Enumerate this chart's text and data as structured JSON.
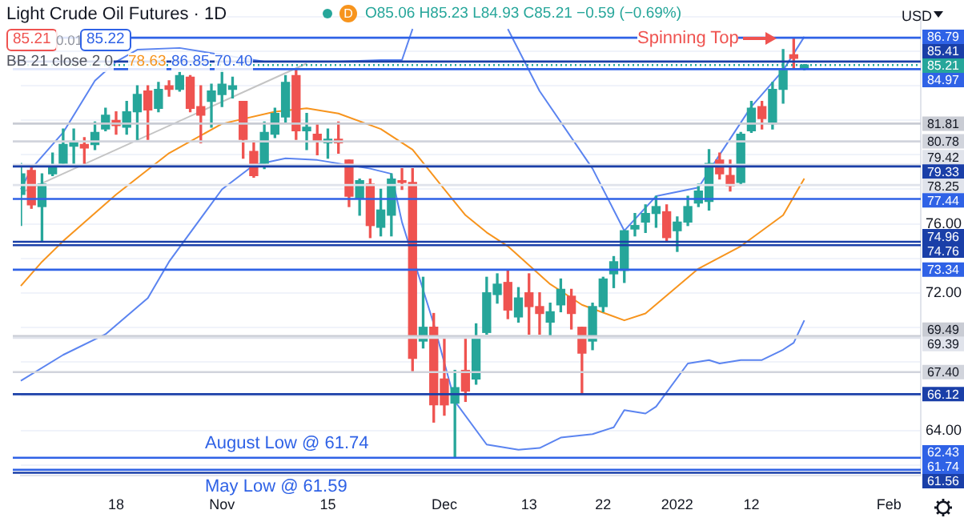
{
  "chart_data": {
    "type": "candlestick",
    "title": "Light Crude Oil Futures · 1D",
    "categories": [
      null,
      null,
      null,
      null,
      null,
      null,
      null,
      null,
      null,
      "18",
      null,
      null,
      null,
      null,
      null,
      null,
      null,
      null,
      null,
      "Nov",
      null,
      null,
      null,
      null,
      null,
      null,
      null,
      null,
      null,
      "15",
      null,
      null,
      null,
      null,
      null,
      null,
      null,
      null,
      null,
      null,
      "Dec",
      null,
      null,
      null,
      null,
      null,
      null,
      null,
      "13",
      null,
      null,
      null,
      null,
      null,
      null,
      "22",
      null,
      null,
      null,
      null,
      null,
      null,
      "2022",
      null,
      null,
      null,
      null,
      null,
      null,
      "12",
      null,
      null,
      null,
      null,
      null,
      null,
      null,
      null,
      null,
      null,
      null,
      null,
      "Feb",
      null,
      null,
      null
    ],
    "ohlc": [
      [
        77.7,
        79.5,
        75.9,
        78.9
      ],
      [
        79.1,
        79.4,
        76.9,
        77.1
      ],
      [
        77.0,
        78.9,
        75.0,
        78.3
      ],
      [
        78.9,
        80.1,
        78.8,
        79.4
      ],
      [
        79.5,
        81.5,
        79.4,
        80.6
      ],
      [
        80.5,
        81.5,
        79.5,
        80.7
      ],
      [
        80.6,
        81.0,
        79.4,
        80.4
      ],
      [
        80.6,
        81.9,
        80.3,
        81.3
      ],
      [
        81.5,
        82.7,
        81.4,
        82.3
      ],
      [
        82.0,
        82.5,
        81.2,
        81.7
      ],
      [
        81.6,
        83.1,
        81.2,
        82.5
      ],
      [
        82.5,
        84.0,
        80.9,
        83.5
      ],
      [
        83.7,
        84.0,
        80.9,
        82.6
      ],
      [
        82.7,
        84.2,
        82.5,
        83.8
      ],
      [
        84.0,
        84.3,
        83.4,
        83.8
      ],
      [
        83.8,
        84.8,
        83.7,
        84.6
      ],
      [
        84.5,
        84.6,
        82.5,
        82.7
      ],
      [
        82.8,
        84.0,
        80.7,
        82.3
      ],
      [
        83.1,
        84.1,
        81.6,
        83.7
      ],
      [
        83.5,
        84.9,
        82.8,
        84.1
      ],
      [
        83.8,
        84.5,
        83.3,
        84.0
      ],
      [
        83.1,
        83.1,
        79.8,
        80.9
      ],
      [
        80.2,
        80.8,
        78.7,
        78.8
      ],
      [
        79.5,
        81.9,
        79.2,
        81.3
      ],
      [
        81.2,
        82.7,
        81.0,
        82.4
      ],
      [
        82.2,
        84.6,
        81.9,
        84.2
      ],
      [
        84.6,
        85.0,
        80.9,
        81.4
      ],
      [
        81.4,
        82.4,
        80.3,
        81.6
      ],
      [
        81.2,
        81.8,
        80.0,
        80.8
      ],
      [
        80.7,
        81.5,
        79.8,
        80.9
      ],
      [
        80.9,
        81.9,
        80.1,
        80.7
      ],
      [
        79.7,
        79.7,
        77.0,
        77.6
      ],
      [
        77.5,
        78.6,
        76.5,
        78.5
      ],
      [
        78.3,
        78.6,
        75.2,
        75.9
      ],
      [
        75.8,
        78.0,
        75.3,
        76.8
      ],
      [
        76.5,
        78.9,
        75.3,
        78.6
      ],
      [
        78.5,
        79.2,
        78.0,
        78.4
      ],
      [
        78.4,
        79.2,
        67.4,
        68.2
      ],
      [
        69.2,
        72.9,
        68.8,
        70.0
      ],
      [
        70.0,
        70.8,
        64.5,
        65.5
      ],
      [
        67.0,
        69.4,
        64.9,
        65.5
      ],
      [
        65.6,
        67.5,
        62.43,
        66.5
      ],
      [
        67.5,
        69.4,
        65.7,
        66.3
      ],
      [
        67.0,
        70.2,
        66.7,
        69.4
      ],
      [
        69.7,
        72.9,
        69.6,
        72.0
      ],
      [
        71.9,
        73.1,
        71.4,
        72.5
      ],
      [
        72.6,
        73.34,
        70.5,
        71.0
      ],
      [
        70.6,
        72.3,
        70.3,
        71.7
      ],
      [
        72.0,
        73.1,
        69.6,
        71.2
      ],
      [
        71.2,
        72.0,
        69.6,
        70.8
      ],
      [
        70.3,
        71.4,
        69.4,
        70.9
      ],
      [
        71.3,
        72.8,
        70.9,
        72.2
      ],
      [
        71.8,
        72.2,
        69.9,
        70.8
      ],
      [
        70.0,
        70.0,
        66.12,
        68.5
      ],
      [
        69.2,
        71.4,
        68.7,
        71.2
      ],
      [
        71.2,
        72.9,
        70.9,
        72.8
      ],
      [
        73.1,
        74.1,
        72.3,
        73.8
      ],
      [
        73.3,
        75.6,
        72.6,
        75.6
      ],
      [
        75.7,
        76.6,
        75.3,
        75.9
      ],
      [
        76.1,
        77.1,
        75.5,
        76.6
      ],
      [
        76.6,
        77.6,
        75.8,
        77.0
      ],
      [
        76.7,
        77.1,
        75.0,
        75.2
      ],
      [
        75.6,
        76.4,
        74.4,
        76.1
      ],
      [
        76.1,
        77.6,
        75.9,
        77.0
      ],
      [
        77.2,
        78.3,
        77.0,
        77.9
      ],
      [
        77.3,
        80.3,
        76.8,
        79.5
      ],
      [
        79.7,
        80.1,
        78.6,
        78.9
      ],
      [
        78.8,
        79.7,
        77.9,
        78.2
      ],
      [
        78.4,
        81.3,
        78.3,
        81.2
      ],
      [
        81.4,
        83.1,
        81.3,
        82.7
      ],
      [
        82.8,
        83.1,
        81.5,
        82.1
      ],
      [
        81.8,
        84.2,
        81.5,
        83.8
      ],
      [
        83.8,
        86.1,
        83.0,
        84.9
      ],
      [
        85.8,
        86.79,
        85.0,
        85.6
      ],
      [
        85.06,
        85.23,
        84.93,
        85.21
      ],
      null,
      null,
      null,
      null,
      null,
      null,
      null,
      null,
      null,
      null,
      null
    ],
    "series": [
      {
        "type": "line",
        "color": "#f7941d",
        "values": [
          72.4,
          null,
          73.8,
          null,
          75.0,
          null,
          null,
          null,
          null,
          77.7,
          null,
          null,
          null,
          null,
          80.1,
          null,
          null,
          null,
          null,
          81.8,
          null,
          null,
          null,
          null,
          82.5,
          null,
          null,
          82.7,
          null,
          null,
          82.4,
          null,
          null,
          null,
          81.5,
          null,
          null,
          80.3,
          null,
          null,
          78.0,
          null,
          76.5,
          null,
          75.5,
          null,
          74.7,
          null,
          null,
          null,
          72.5,
          null,
          null,
          71.3,
          null,
          null,
          null,
          70.4,
          null,
          70.8,
          null,
          null,
          null,
          null,
          73.4,
          null,
          null,
          null,
          74.7,
          null,
          null,
          null,
          76.5,
          null,
          78.63,
          null,
          null,
          null,
          null,
          null,
          null,
          null,
          null,
          null,
          null,
          null
        ]
      },
      {
        "type": "line",
        "color": "#5b84f0",
        "values": [
          78.0,
          79.2,
          null,
          null,
          81.3,
          null,
          null,
          84.3,
          null,
          85.4,
          null,
          86.1,
          null,
          null,
          null,
          86.2,
          null,
          null,
          null,
          null,
          null,
          null,
          null,
          85.4,
          null,
          null,
          85.4,
          null,
          null,
          null,
          85.4,
          null,
          null,
          null,
          85.5,
          null,
          85.5,
          87.3,
          null,
          null,
          null,
          null,
          null,
          null,
          null,
          null,
          null,
          null,
          null,
          null,
          null,
          null,
          null,
          null,
          null,
          null,
          null,
          null,
          null,
          null,
          null,
          null,
          null,
          null,
          null,
          null,
          null,
          null,
          null,
          null,
          null,
          null,
          null,
          null,
          null,
          null,
          null,
          null,
          null,
          null,
          null,
          null,
          null,
          null,
          null,
          null
        ]
      },
      {
        "type": "line",
        "color": "#5b84f0",
        "values": [
          null,
          null,
          null,
          null,
          null,
          null,
          null,
          null,
          null,
          null,
          null,
          null,
          null,
          null,
          null,
          null,
          null,
          null,
          null,
          null,
          null,
          null,
          null,
          null,
          null,
          null,
          null,
          null,
          null,
          null,
          null,
          null,
          null,
          null,
          null,
          null,
          null,
          null,
          null,
          null,
          null,
          null,
          null,
          null,
          null,
          null,
          87.3,
          null,
          null,
          83.7,
          null,
          null,
          null,
          null,
          79.2,
          null,
          null,
          75.6,
          null,
          null,
          77.6,
          null,
          null,
          null,
          78.1,
          null,
          80.0,
          null,
          null,
          82.8,
          null,
          null,
          84.9,
          null,
          86.85,
          null,
          null,
          null,
          null,
          null,
          null,
          null,
          null,
          null,
          null,
          null
        ]
      },
      {
        "type": "line",
        "color": "#5b84f0",
        "values": [
          66.9,
          null,
          null,
          null,
          68.4,
          null,
          null,
          null,
          69.6,
          null,
          null,
          null,
          71.7,
          null,
          73.8,
          null,
          null,
          null,
          null,
          78.0,
          null,
          null,
          79.4,
          null,
          null,
          79.8,
          null,
          null,
          79.7,
          null,
          null,
          null,
          null,
          79.2,
          null,
          78.9,
          76.1,
          null,
          null,
          70.2,
          null,
          65.7,
          null,
          null,
          63.2,
          null,
          null,
          62.9,
          null,
          63.0,
          null,
          63.6,
          null,
          null,
          63.8,
          null,
          64.2,
          65.2,
          null,
          65.0,
          65.4,
          null,
          null,
          67.9,
          null,
          68.1,
          67.9,
          null,
          68.1,
          null,
          68.1,
          null,
          68.7,
          69.1,
          70.4,
          null,
          null,
          null,
          null,
          null,
          null,
          null,
          null,
          null,
          null,
          null
        ]
      },
      {
        "type": "line",
        "color": "#c4c4c4",
        "values": [
          77.8,
          null,
          null,
          null,
          null,
          null,
          null,
          null,
          null,
          null,
          null,
          null,
          null,
          null,
          null,
          null,
          null,
          null,
          null,
          null,
          null,
          null,
          null,
          null,
          null,
          null,
          null,
          85.3,
          null,
          null,
          null,
          null,
          null,
          null,
          null,
          null,
          null,
          null,
          null,
          null,
          null,
          null,
          null,
          null,
          null,
          null,
          null,
          null,
          null,
          null,
          null,
          null,
          null,
          null,
          null,
          null,
          null,
          null,
          null,
          null,
          null,
          null,
          null,
          null,
          null,
          null,
          null,
          null,
          null,
          null,
          null,
          null,
          null,
          null,
          null,
          null,
          null,
          null,
          null,
          null,
          null,
          null,
          null,
          null,
          null,
          null
        ]
      }
    ],
    "ylim": [
      61.4,
      88.2
    ],
    "yticks": [
      {
        "value": 62,
        "label": null
      },
      {
        "value": 64,
        "label": "64.00"
      },
      {
        "value": 66,
        "label": null
      },
      {
        "value": 68,
        "label": null
      },
      {
        "value": 70,
        "label": null
      },
      {
        "value": 72,
        "label": "72.00"
      },
      {
        "value": 74,
        "label": null
      },
      {
        "value": 76,
        "label": "76.00"
      },
      {
        "value": 78,
        "label": null
      },
      {
        "value": 80,
        "label": null
      },
      {
        "value": 82,
        "label": null
      },
      {
        "value": 84,
        "label": null
      },
      {
        "value": 86,
        "label": null
      },
      {
        "value": 88,
        "label": null
      }
    ],
    "grid": "y",
    "ref_lines": [
      {
        "axis": "y",
        "value": 86.79,
        "label": "86.79",
        "color": "#2f62e6"
      },
      {
        "axis": "y",
        "value": 85.41,
        "label": "85.41",
        "color": "#1a3fa8"
      },
      {
        "axis": "y",
        "value": 85.21,
        "label": "85.21",
        "color": "#26a69a",
        "line_style": "dotted"
      },
      {
        "axis": "y",
        "value": 84.97,
        "label": "84.97",
        "color": "#2f62e6"
      },
      {
        "axis": "y",
        "value": 81.81,
        "label": "81.81",
        "color": "#c9ccd4"
      },
      {
        "axis": "y",
        "value": 80.78,
        "label": "80.78",
        "color": "#d1d4dc"
      },
      {
        "axis": "y",
        "value": 79.42,
        "label": "79.42",
        "color": "#e0e3eb"
      },
      {
        "axis": "y",
        "value": 79.33,
        "label": "79.33",
        "color": "#1a3fa8"
      },
      {
        "axis": "y",
        "value": 78.25,
        "label": "78.25",
        "color": "#e0e3eb"
      },
      {
        "axis": "y",
        "value": 77.44,
        "label": "77.44",
        "color": "#2f62e6"
      },
      {
        "axis": "y",
        "value": 74.96,
        "label": "74.96",
        "color": "#1a3fa8"
      },
      {
        "axis": "y",
        "value": 74.76,
        "label": "74.76",
        "color": "#1a3fa8"
      },
      {
        "axis": "y",
        "value": 73.34,
        "label": "73.34",
        "color": "#2f62e6"
      },
      {
        "axis": "y",
        "value": 69.49,
        "label": "69.49",
        "color": "#c9ccd4"
      },
      {
        "axis": "y",
        "value": 69.39,
        "label": "69.39",
        "color": "#e0e3eb"
      },
      {
        "axis": "y",
        "value": 67.4,
        "label": "67.40",
        "color": "#d1d4dc"
      },
      {
        "axis": "y",
        "value": 66.12,
        "label": "66.12",
        "color": "#1a3fa8"
      },
      {
        "axis": "y",
        "value": 62.43,
        "label": "62.43",
        "color": "#2f62e6"
      },
      {
        "axis": "y",
        "value": 61.74,
        "label": "61.74",
        "color": "#2f62e6"
      },
      {
        "axis": "y",
        "value": 61.56,
        "label": "61.56",
        "color": "#1a3fa8"
      }
    ],
    "annotations": [
      "D",
      "O85.06 H85.23 L84.93 C85.21 −0.59 (−0.69%)",
      "85.21",
      "0.01",
      "85.22",
      "BB 21 close 2 0",
      "78.63",
      "86.85",
      "70.40",
      "Spinning Top",
      "August Low @ 61.74",
      "May Low @ 61.59",
      "USD"
    ]
  }
}
